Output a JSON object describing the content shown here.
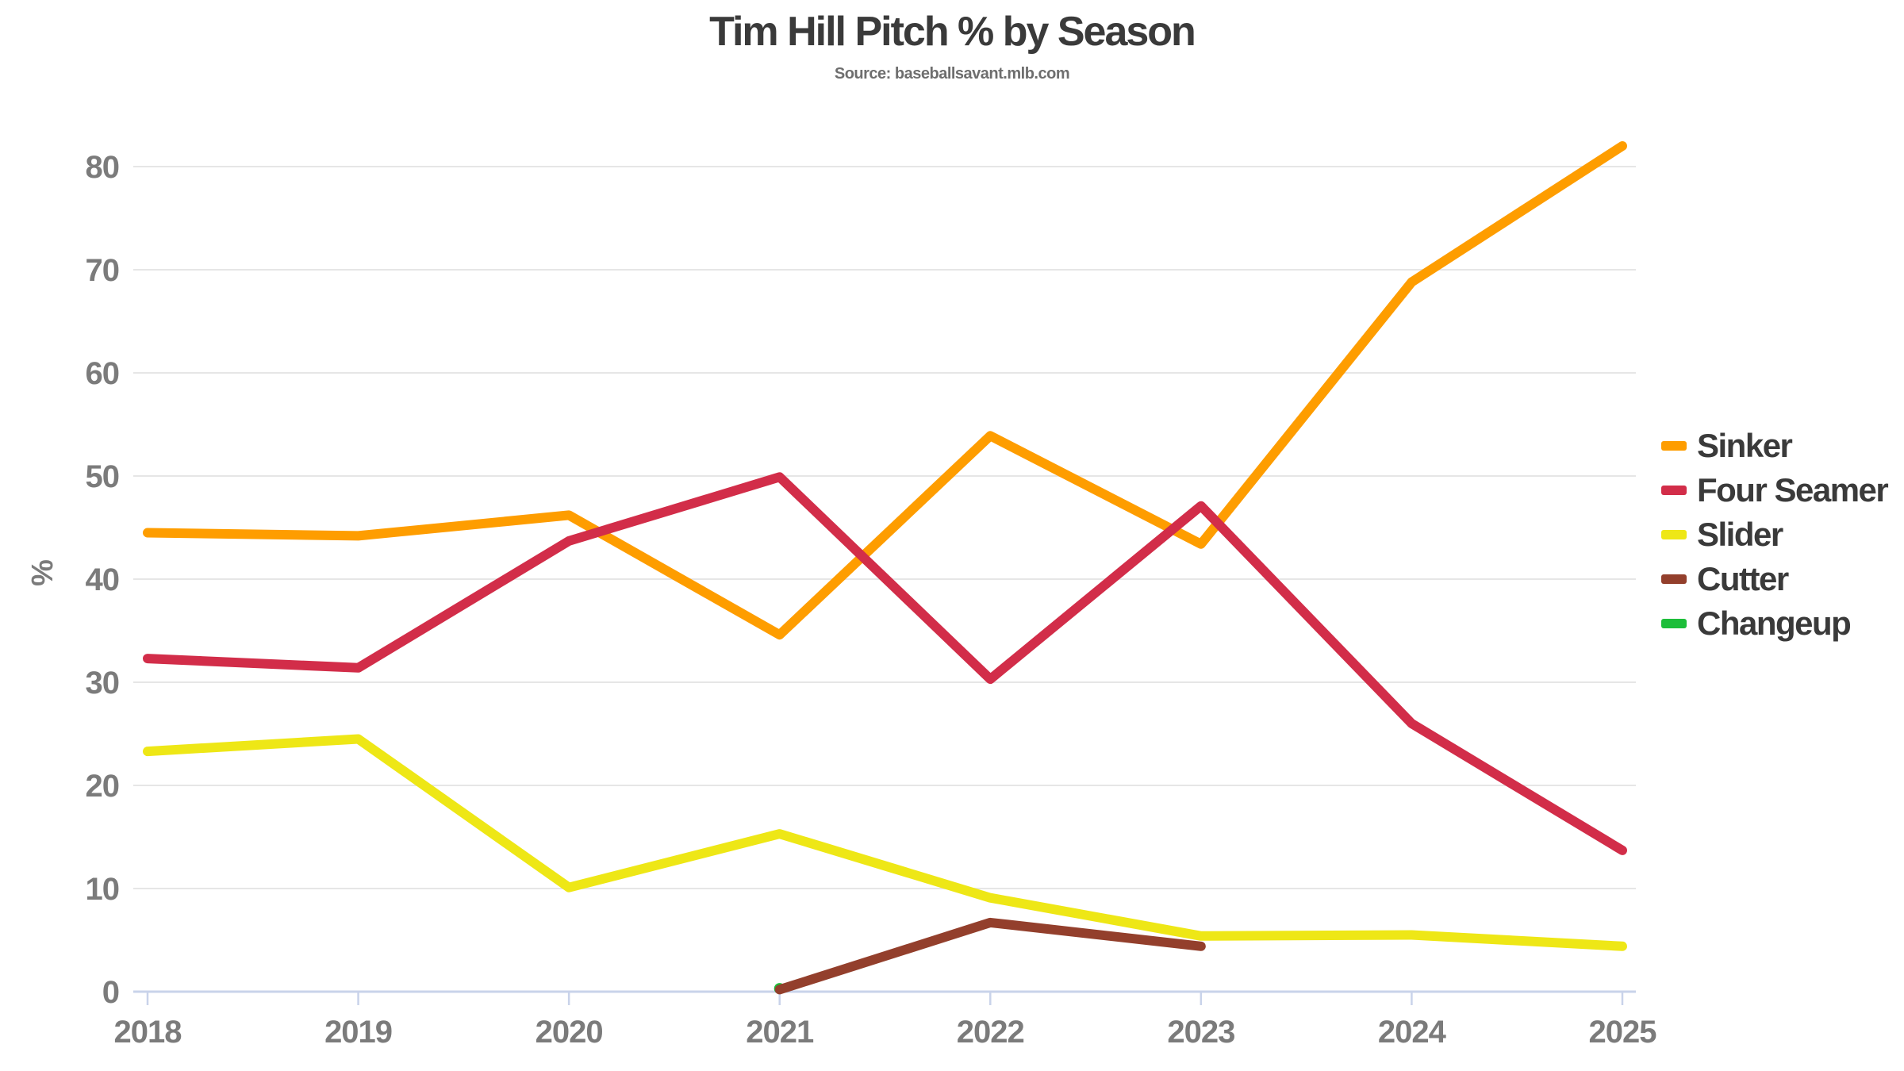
{
  "chart_data": {
    "type": "line",
    "title": "Tim Hill Pitch % by Season",
    "subtitle": "Source: baseballsavant.mlb.com",
    "ylabel": "%",
    "x": [
      2018,
      2019,
      2020,
      2021,
      2022,
      2023,
      2024,
      2025
    ],
    "yticks": [
      0,
      10,
      20,
      30,
      40,
      50,
      60,
      70,
      80
    ],
    "ylim": [
      0,
      85
    ],
    "grid": "horizontal",
    "legend_position": "right",
    "series": [
      {
        "name": "Sinker",
        "color": "#FE9D00",
        "values": [
          44.5,
          44.2,
          46.2,
          34.6,
          53.9,
          43.4,
          68.8,
          82.0
        ]
      },
      {
        "name": "Four Seamer",
        "color": "#D22D49",
        "values": [
          32.3,
          31.4,
          43.7,
          49.9,
          30.3,
          47.1,
          26.0,
          13.7
        ]
      },
      {
        "name": "Slider",
        "color": "#EEE716",
        "values": [
          23.3,
          24.5,
          10.1,
          15.3,
          9.1,
          5.4,
          5.5,
          4.4
        ]
      },
      {
        "name": "Cutter",
        "color": "#933F2C",
        "values": [
          null,
          null,
          null,
          0.2,
          6.7,
          4.4,
          null,
          null
        ]
      },
      {
        "name": "Changeup",
        "color": "#1DBE3A",
        "values": [
          null,
          null,
          null,
          0.3,
          null,
          null,
          null,
          null
        ]
      }
    ],
    "colors": {
      "gridline": "#E6E6E6",
      "axis": "#C9D3EA",
      "tick_text": "#7b7b7b",
      "title_text": "#3a3a3a"
    }
  }
}
